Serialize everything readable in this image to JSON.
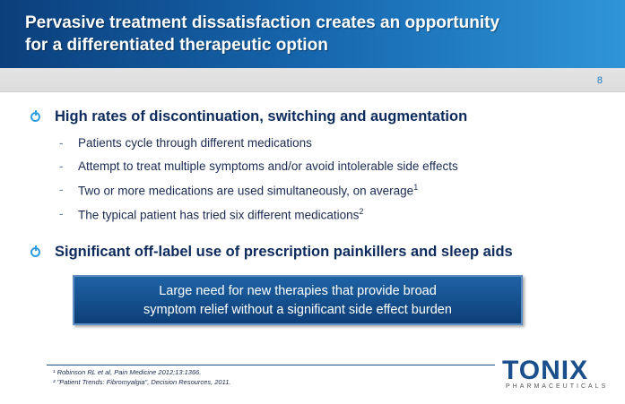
{
  "header": {
    "title_line1": "Pervasive treatment dissatisfaction creates an opportunity",
    "title_line2": "for a differentiated therapeutic option",
    "page_number": "8"
  },
  "bullets": [
    {
      "text": "High rates of discontinuation, switching and augmentation",
      "subs": [
        {
          "text": "Patients cycle through different medications",
          "sup": ""
        },
        {
          "text": "Attempt to treat multiple symptoms and/or avoid intolerable side effects",
          "sup": ""
        },
        {
          "text": "Two or more medications are used simultaneously, on average",
          "sup": "1"
        },
        {
          "text": "The typical patient has tried six different medications",
          "sup": "2"
        }
      ]
    },
    {
      "text": "Significant off-label use of prescription painkillers and sleep aids"
    }
  ],
  "dash": "-",
  "callout": {
    "line1": "Large need for new therapies that provide broad",
    "line2": "symptom relief without a significant side effect burden"
  },
  "footnotes": [
    "¹ Robinson RL et al, Pain Medicine 2012;13:1366.",
    "² \"Patient Trends: Fibromyalgia\", Decision Resources, 2011."
  ],
  "logo": {
    "name": "TONIX",
    "sub": "PHARMACEUTICALS"
  },
  "colors": {
    "header_dark": "#0b3f7c",
    "header_light": "#2f95d8",
    "bullet_icon": "#2f9be0",
    "text": "#0d2a5c"
  }
}
